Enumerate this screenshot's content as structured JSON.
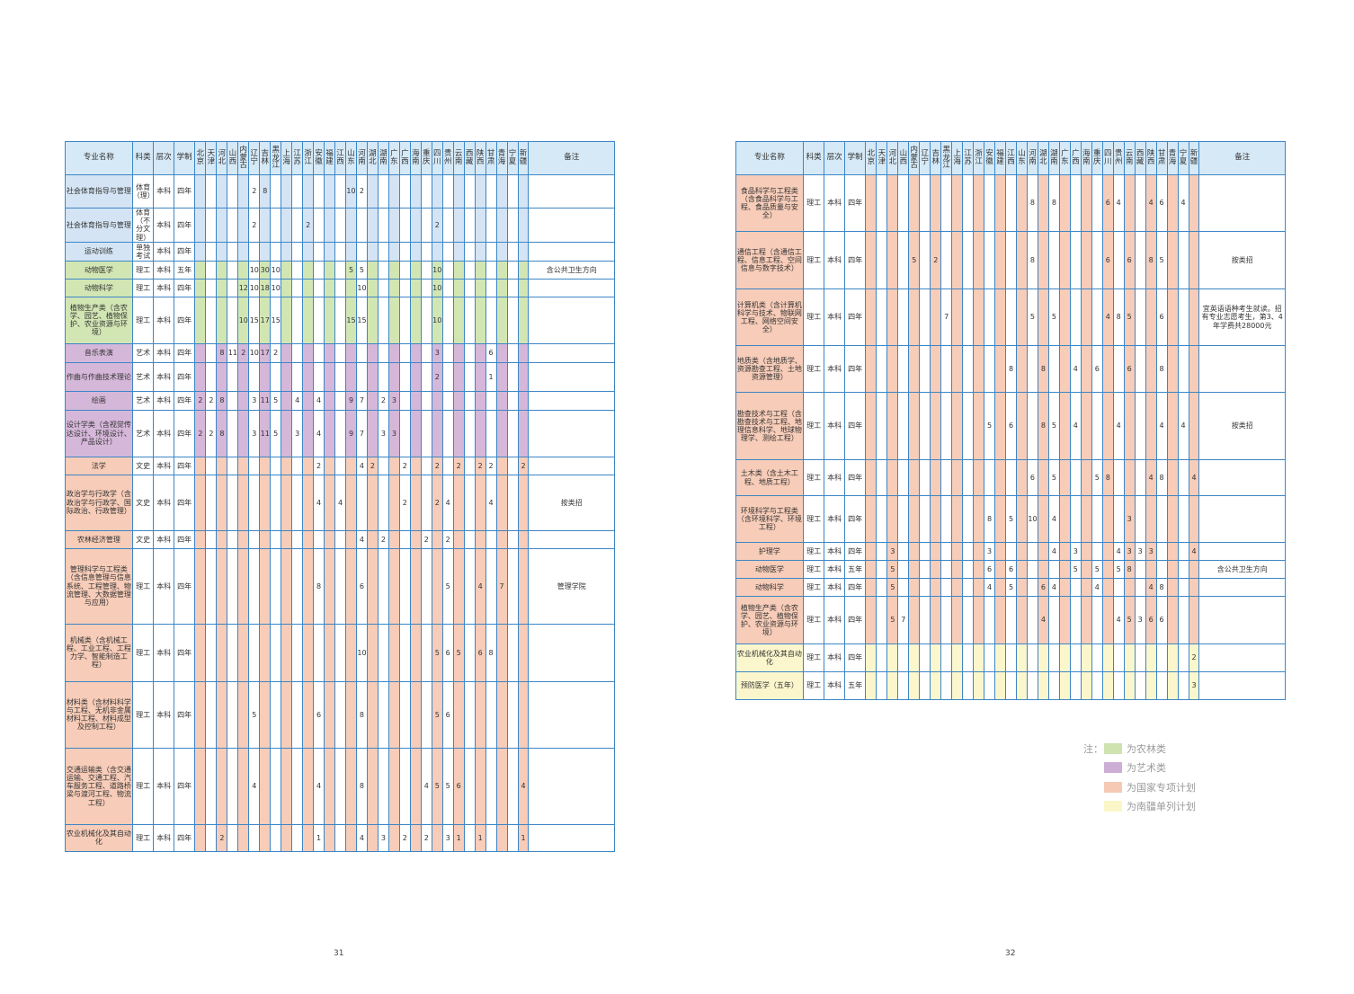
{
  "header": {
    "name": "专业名称",
    "type": "科类",
    "level": "层次",
    "years": "学制",
    "note": "备注",
    "provinces": [
      "北京",
      "天津",
      "河北",
      "山西",
      "内蒙古",
      "辽宁",
      "吉林",
      "黑龙江",
      "上海",
      "江苏",
      "浙江",
      "安徽",
      "福建",
      "江西",
      "山东",
      "河南",
      "湖北",
      "湖南",
      "广东",
      "广西",
      "海南",
      "重庆",
      "四川",
      "贵州",
      "云南",
      "西藏",
      "陕西",
      "甘肃",
      "青海",
      "宁夏",
      "新疆"
    ]
  },
  "left_table": {
    "rows": [
      {
        "name": "社会体育指导与管理",
        "type": "体育（理）",
        "level": "本科",
        "years": "四年",
        "cat": "b",
        "vals": {
          "5": "2",
          "6": "8",
          "14": "10",
          "15": "2"
        },
        "note": ""
      },
      {
        "name": "社会体育指导与管理",
        "type": "体育（不分文理）",
        "level": "本科",
        "years": "四年",
        "cat": "b",
        "vals": {
          "5": "2",
          "10": "2",
          "22": "2"
        },
        "note": ""
      },
      {
        "name": "运动训练",
        "type": "单独考试",
        "level": "本科",
        "years": "四年",
        "cat": "b",
        "vals": {},
        "note": ""
      },
      {
        "name": "动物医学",
        "type": "理工",
        "level": "本科",
        "years": "五年",
        "cat": "g",
        "vals": {
          "5": "10",
          "6": "30",
          "7": "10",
          "14": "5",
          "15": "5",
          "22": "10"
        },
        "note": "含公共卫生方向"
      },
      {
        "name": "动物科学",
        "type": "理工",
        "level": "本科",
        "years": "四年",
        "cat": "g",
        "vals": {
          "4": "12",
          "5": "10",
          "6": "18",
          "7": "10",
          "15": "10",
          "22": "10"
        },
        "note": ""
      },
      {
        "name": "植物生产类（含农学、园艺、植物保护、农业资源与环境）",
        "type": "理工",
        "level": "本科",
        "years": "四年",
        "cat": "g",
        "vals": {
          "4": "10",
          "5": "15",
          "6": "17",
          "7": "15",
          "14": "15",
          "15": "15",
          "22": "10"
        },
        "note": ""
      },
      {
        "name": "音乐表演",
        "type": "艺术",
        "level": "本科",
        "years": "四年",
        "cat": "p",
        "vals": {
          "2": "8",
          "3": "11",
          "4": "2",
          "5": "10",
          "6": "17",
          "7": "2",
          "22": "3",
          "27": "6"
        },
        "note": ""
      },
      {
        "name": "作曲与作曲技术理论",
        "type": "艺术",
        "level": "本科",
        "years": "四年",
        "cat": "p",
        "vals": {
          "22": "2",
          "27": "1"
        },
        "note": ""
      },
      {
        "name": "绘画",
        "type": "艺术",
        "level": "本科",
        "years": "四年",
        "cat": "p",
        "vals": {
          "0": "2",
          "1": "2",
          "2": "8",
          "5": "3",
          "6": "11",
          "7": "5",
          "9": "4",
          "11": "4",
          "14": "9",
          "15": "7",
          "17": "2",
          "18": "3"
        },
        "note": ""
      },
      {
        "name": "设计学类（含视觉传达设计、环境设计、产品设计）",
        "type": "艺术",
        "level": "本科",
        "years": "四年",
        "cat": "p",
        "vals": {
          "0": "2",
          "1": "2",
          "2": "8",
          "5": "3",
          "6": "11",
          "7": "5",
          "9": "3",
          "11": "4",
          "14": "9",
          "15": "7",
          "17": "3",
          "18": "3"
        },
        "note": ""
      },
      {
        "name": "法学",
        "type": "文史",
        "level": "本科",
        "years": "四年",
        "cat": "o",
        "vals": {
          "11": "2",
          "15": "4",
          "16": "2",
          "19": "2",
          "22": "2",
          "24": "2",
          "26": "2",
          "27": "2",
          "30": "2"
        },
        "note": ""
      },
      {
        "name": "政治学与行政学（含政治学与行政学、国际政治、行政管理）",
        "type": "文史",
        "level": "本科",
        "years": "四年",
        "cat": "o",
        "vals": {
          "11": "4",
          "13": "4",
          "19": "2",
          "22": "2",
          "23": "4",
          "27": "4"
        },
        "note": "按类招"
      },
      {
        "name": "农林经济管理",
        "type": "文史",
        "level": "本科",
        "years": "四年",
        "cat": "o",
        "vals": {
          "15": "4",
          "17": "2",
          "21": "2",
          "23": "2"
        },
        "note": ""
      },
      {
        "name": "管理科学与工程类（含信息管理与信息系统、工程管理、物流管理、大数据管理与应用）",
        "type": "理工",
        "level": "本科",
        "years": "四年",
        "cat": "o",
        "vals": {
          "11": "8",
          "15": "6",
          "23": "5",
          "26": "4",
          "28": "7"
        },
        "note": "管理学院"
      },
      {
        "name": "机械类（含机械工程、工业工程、工程力学、智能制造工程）",
        "type": "理工",
        "level": "本科",
        "years": "四年",
        "cat": "o",
        "vals": {
          "15": "10",
          "22": "5",
          "23": "6",
          "24": "5",
          "26": "6",
          "27": "8"
        },
        "note": ""
      },
      {
        "name": "材料类（含材料科学与工程、无机非金属材料工程、材料成型及控制工程）",
        "type": "理工",
        "level": "本科",
        "years": "四年",
        "cat": "o",
        "vals": {
          "5": "5",
          "11": "6",
          "15": "8",
          "22": "5",
          "23": "6"
        },
        "note": ""
      },
      {
        "name": "交通运输类（含交通运输、交通工程、汽车服务工程、道路桥梁与渡河工程、物流工程）",
        "type": "理工",
        "level": "本科",
        "years": "四年",
        "cat": "o",
        "vals": {
          "5": "4",
          "11": "4",
          "15": "8",
          "21": "4",
          "22": "5",
          "23": "5",
          "24": "6",
          "30": "4"
        },
        "note": ""
      },
      {
        "name": "农业机械化及其自动化",
        "type": "理工",
        "level": "本科",
        "years": "四年",
        "cat": "o",
        "vals": {
          "2": "2",
          "11": "1",
          "15": "4",
          "17": "3",
          "19": "2",
          "21": "2",
          "23": "3",
          "24": "1",
          "26": "1",
          "30": "1"
        },
        "note": ""
      }
    ]
  },
  "right_table": {
    "rows": [
      {
        "name": "食品科学与工程类（含食品科学与工程、食品质量与安全）",
        "type": "理工",
        "level": "本科",
        "years": "四年",
        "cat": "o",
        "vals": {
          "15": "8",
          "17": "8",
          "22": "6",
          "23": "4",
          "26": "4",
          "27": "6",
          "29": "4"
        },
        "note": ""
      },
      {
        "name": "通信工程（含通信工程、信息工程、空间信息与数字技术）",
        "type": "理工",
        "level": "本科",
        "years": "四年",
        "cat": "o",
        "vals": {
          "4": "5",
          "6": "2",
          "15": "8",
          "22": "6",
          "24": "6",
          "26": "8",
          "27": "5"
        },
        "note": "按类招"
      },
      {
        "name": "计算机类（含计算机科学与技术、物联网工程、网络空间安全）",
        "type": "理工",
        "level": "本科",
        "years": "四年",
        "cat": "o",
        "vals": {
          "7": "7",
          "15": "5",
          "17": "5",
          "22": "4",
          "23": "8",
          "24": "5",
          "27": "6"
        },
        "note": "宜英语语种考生就读。招有专业志愿考生，第3、4年学费共28000元"
      },
      {
        "name": "地质类（含地质学、资源勘查工程、土地资源管理）",
        "type": "理工",
        "level": "本科",
        "years": "四年",
        "cat": "o",
        "vals": {
          "13": "8",
          "16": "8",
          "19": "4",
          "21": "6",
          "24": "6",
          "27": "8"
        },
        "note": ""
      },
      {
        "name": "勘查技术与工程（含勘查技术与工程、地理信息科学、地球物理学、测绘工程）",
        "type": "理工",
        "level": "本科",
        "years": "四年",
        "cat": "o",
        "vals": {
          "11": "5",
          "13": "6",
          "16": "8",
          "17": "5",
          "19": "4",
          "23": "4",
          "27": "4",
          "29": "4"
        },
        "note": "按类招"
      },
      {
        "name": "土木类（含土木工程、地质工程）",
        "type": "理工",
        "level": "本科",
        "years": "四年",
        "cat": "o",
        "vals": {
          "15": "6",
          "17": "5",
          "21": "5",
          "22": "8",
          "26": "4",
          "27": "8",
          "30": "4"
        },
        "note": ""
      },
      {
        "name": "环境科学与工程类（含环境科学、环境工程）",
        "type": "理工",
        "level": "本科",
        "years": "四年",
        "cat": "o",
        "vals": {
          "11": "8",
          "13": "5",
          "15": "10",
          "17": "4",
          "24": "3"
        },
        "note": ""
      },
      {
        "name": "护理学",
        "type": "理工",
        "level": "本科",
        "years": "四年",
        "cat": "o",
        "vals": {
          "2": "3",
          "11": "3",
          "17": "4",
          "19": "3",
          "23": "4",
          "24": "3",
          "25": "3",
          "26": "3",
          "30": "4"
        },
        "note": ""
      },
      {
        "name": "动物医学",
        "type": "理工",
        "level": "本科",
        "years": "五年",
        "cat": "o",
        "vals": {
          "2": "5",
          "11": "6",
          "13": "6",
          "19": "5",
          "21": "5",
          "23": "5",
          "24": "8"
        },
        "note": "含公共卫生方向"
      },
      {
        "name": "动物科学",
        "type": "理工",
        "level": "本科",
        "years": "四年",
        "cat": "o",
        "vals": {
          "2": "5",
          "11": "4",
          "13": "5",
          "16": "6",
          "17": "4",
          "21": "4",
          "26": "4",
          "27": "8"
        },
        "note": ""
      },
      {
        "name": "植物生产类（含农学、园艺、植物保护、农业资源与环境）",
        "type": "理工",
        "level": "本科",
        "years": "四年",
        "cat": "o",
        "vals": {
          "2": "5",
          "3": "7",
          "16": "4",
          "23": "4",
          "24": "5",
          "25": "3",
          "26": "6",
          "27": "6"
        },
        "note": ""
      },
      {
        "name": "农业机械化及其自动化",
        "type": "理工",
        "level": "本科",
        "years": "四年",
        "cat": "y",
        "vals": {
          "30": "2"
        },
        "note": ""
      },
      {
        "name": "预防医学（五年）",
        "type": "理工",
        "level": "本科",
        "years": "五年",
        "cat": "y",
        "vals": {
          "30": "3"
        },
        "note": ""
      }
    ]
  },
  "legend": {
    "prefix": "注：",
    "items": [
      {
        "label": "为农林类",
        "color": "#cfe3b0"
      },
      {
        "label": "为艺术类",
        "color": "#cdaed4"
      },
      {
        "label": "为国家专项计划",
        "color": "#f5c9b3"
      },
      {
        "label": "为南疆单列计划",
        "color": "#faf6c8"
      }
    ]
  },
  "pages": {
    "left": "31",
    "right": "32"
  },
  "colors": {
    "border": "#3d86c6",
    "header": "#d6e9f6",
    "agri": "#d2e6b4",
    "art": "#d5b7d9",
    "national": "#f7ccb8",
    "nanjiang": "#fbf6cc",
    "sport": "#d4e4f4"
  }
}
